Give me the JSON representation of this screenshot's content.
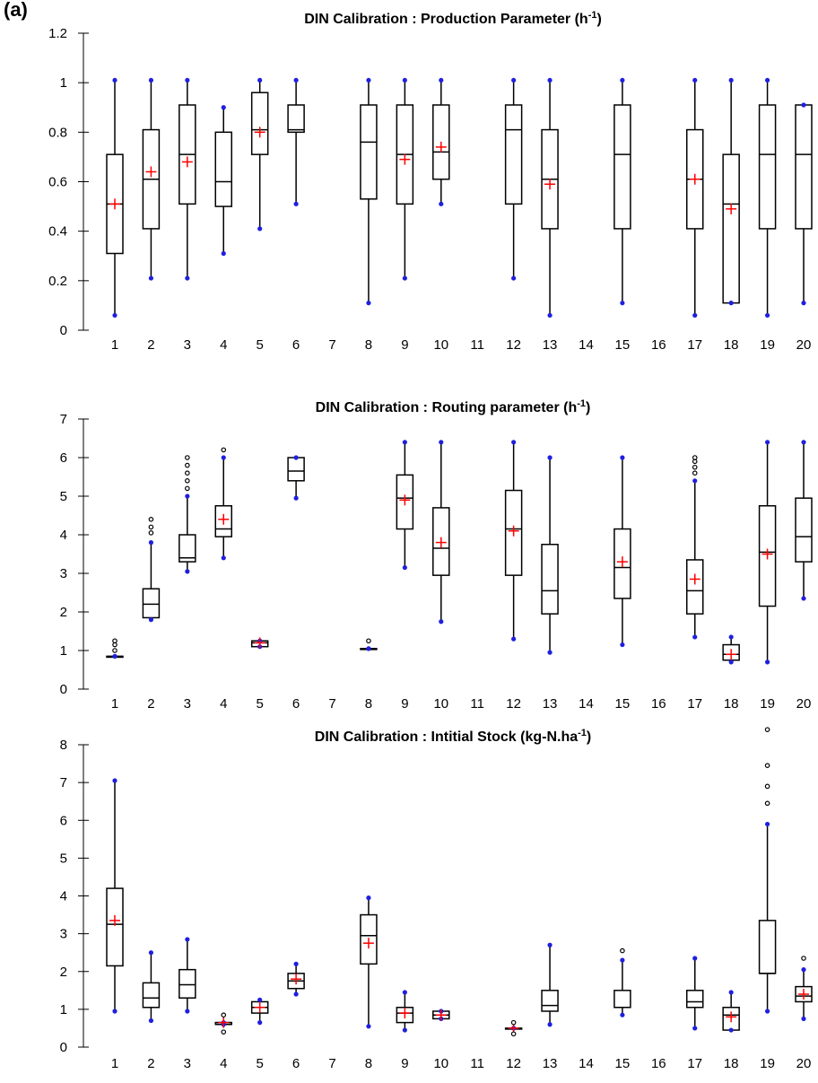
{
  "panel_label": "(a)",
  "chart_data": [
    {
      "type": "box",
      "title": "DIN Calibration : Production Parameter (h",
      "title_sup": "-1",
      "title_end": ")",
      "xlabel": "",
      "ylabel": "",
      "ylim": [
        0,
        1.2
      ],
      "yticks": [
        0,
        0.2,
        0.4,
        0.6,
        0.8,
        1,
        1.2
      ],
      "categories": [
        "1",
        "2",
        "3",
        "4",
        "5",
        "6",
        "7",
        "8",
        "9",
        "10",
        "11",
        "12",
        "13",
        "14",
        "15",
        "16",
        "17",
        "18",
        "19",
        "20"
      ],
      "boxes": [
        {
          "cat": "1",
          "q1": 0.31,
          "median": 0.51,
          "q3": 0.71,
          "mean": 0.51,
          "wlo": 0.06,
          "whi": 1.01,
          "outliers": []
        },
        {
          "cat": "2",
          "q1": 0.41,
          "median": 0.61,
          "q3": 0.81,
          "mean": 0.64,
          "wlo": 0.21,
          "whi": 1.01,
          "outliers": []
        },
        {
          "cat": "3",
          "q1": 0.51,
          "median": 0.71,
          "q3": 0.91,
          "mean": 0.68,
          "wlo": 0.21,
          "whi": 1.01,
          "outliers": []
        },
        {
          "cat": "4",
          "q1": 0.5,
          "median": 0.6,
          "q3": 0.8,
          "mean": null,
          "wlo": 0.31,
          "whi": 0.9,
          "outliers": []
        },
        {
          "cat": "5",
          "q1": 0.71,
          "median": 0.81,
          "q3": 0.96,
          "mean": 0.8,
          "wlo": 0.41,
          "whi": 1.01,
          "outliers": []
        },
        {
          "cat": "6",
          "q1": 0.8,
          "median": 0.81,
          "q3": 0.91,
          "mean": null,
          "wlo": 0.51,
          "whi": 1.01,
          "outliers": []
        },
        {
          "cat": "8",
          "q1": 0.53,
          "median": 0.76,
          "q3": 0.91,
          "mean": null,
          "wlo": 0.11,
          "whi": 1.01,
          "outliers": []
        },
        {
          "cat": "9",
          "q1": 0.51,
          "median": 0.71,
          "q3": 0.91,
          "mean": 0.69,
          "wlo": 0.21,
          "whi": 1.01,
          "outliers": []
        },
        {
          "cat": "10",
          "q1": 0.61,
          "median": 0.72,
          "q3": 0.91,
          "mean": 0.74,
          "wlo": 0.51,
          "whi": 1.01,
          "outliers": []
        },
        {
          "cat": "12",
          "q1": 0.51,
          "median": 0.81,
          "q3": 0.91,
          "mean": null,
          "wlo": 0.21,
          "whi": 1.01,
          "outliers": []
        },
        {
          "cat": "13",
          "q1": 0.41,
          "median": 0.61,
          "q3": 0.81,
          "mean": 0.59,
          "wlo": 0.06,
          "whi": 1.01,
          "outliers": []
        },
        {
          "cat": "15",
          "q1": 0.41,
          "median": 0.71,
          "q3": 0.91,
          "mean": null,
          "wlo": 0.11,
          "whi": 1.01,
          "outliers": []
        },
        {
          "cat": "17",
          "q1": 0.41,
          "median": 0.61,
          "q3": 0.81,
          "mean": 0.61,
          "wlo": 0.06,
          "whi": 1.01,
          "outliers": []
        },
        {
          "cat": "18",
          "q1": 0.11,
          "median": 0.51,
          "q3": 0.71,
          "mean": 0.49,
          "wlo": 0.11,
          "whi": 1.01,
          "outliers": []
        },
        {
          "cat": "19",
          "q1": 0.41,
          "median": 0.71,
          "q3": 0.91,
          "mean": null,
          "wlo": 0.06,
          "whi": 1.01,
          "outliers": []
        },
        {
          "cat": "20",
          "q1": 0.41,
          "median": 0.71,
          "q3": 0.91,
          "mean": null,
          "wlo": 0.11,
          "whi": 0.91,
          "outliers": []
        }
      ]
    },
    {
      "type": "box",
      "title": "DIN Calibration : Routing parameter (h",
      "title_sup": "-1",
      "title_end": ")",
      "xlabel": "",
      "ylabel": "",
      "ylim": [
        0,
        7
      ],
      "yticks": [
        0,
        1,
        2,
        3,
        4,
        5,
        6,
        7
      ],
      "categories": [
        "1",
        "2",
        "3",
        "4",
        "5",
        "6",
        "7",
        "8",
        "9",
        "10",
        "11",
        "12",
        "13",
        "14",
        "15",
        "16",
        "17",
        "18",
        "19",
        "20"
      ],
      "boxes": [
        {
          "cat": "1",
          "q1": 0.85,
          "median": 0.85,
          "q3": 0.85,
          "mean": null,
          "wlo": 0.85,
          "whi": 0.85,
          "outliers": [
            1.0,
            1.15,
            1.25
          ]
        },
        {
          "cat": "2",
          "q1": 1.85,
          "median": 2.2,
          "q3": 2.6,
          "mean": null,
          "wlo": 1.8,
          "whi": 3.8,
          "outliers": [
            4.05,
            4.2,
            4.4
          ]
        },
        {
          "cat": "3",
          "q1": 3.3,
          "median": 3.4,
          "q3": 4.0,
          "mean": null,
          "wlo": 3.05,
          "whi": 5.0,
          "outliers": [
            5.2,
            5.4,
            5.6,
            5.8,
            6.0
          ]
        },
        {
          "cat": "4",
          "q1": 3.95,
          "median": 4.15,
          "q3": 4.75,
          "mean": 4.4,
          "wlo": 3.4,
          "whi": 6.0,
          "outliers": [
            6.2
          ]
        },
        {
          "cat": "5",
          "q1": 1.1,
          "median": 1.2,
          "q3": 1.25,
          "mean": 1.2,
          "wlo": 1.1,
          "whi": 1.25,
          "outliers": []
        },
        {
          "cat": "6",
          "q1": 5.4,
          "median": 5.65,
          "q3": 6.0,
          "mean": null,
          "wlo": 4.95,
          "whi": 6.0,
          "outliers": []
        },
        {
          "cat": "8",
          "q1": 1.05,
          "median": 1.05,
          "q3": 1.05,
          "mean": null,
          "wlo": 1.05,
          "whi": 1.05,
          "outliers": [
            1.25
          ]
        },
        {
          "cat": "9",
          "q1": 4.15,
          "median": 4.95,
          "q3": 5.55,
          "mean": 4.9,
          "wlo": 3.15,
          "whi": 6.4,
          "outliers": []
        },
        {
          "cat": "10",
          "q1": 2.95,
          "median": 3.65,
          "q3": 4.7,
          "mean": 3.8,
          "wlo": 1.75,
          "whi": 6.4,
          "outliers": []
        },
        {
          "cat": "12",
          "q1": 2.95,
          "median": 4.15,
          "q3": 5.15,
          "mean": 4.1,
          "wlo": 1.3,
          "whi": 6.4,
          "outliers": []
        },
        {
          "cat": "13",
          "q1": 1.95,
          "median": 2.55,
          "q3": 3.75,
          "mean": null,
          "wlo": 0.95,
          "whi": 6.0,
          "outliers": []
        },
        {
          "cat": "15",
          "q1": 2.35,
          "median": 3.15,
          "q3": 4.15,
          "mean": 3.3,
          "wlo": 1.15,
          "whi": 6.0,
          "outliers": []
        },
        {
          "cat": "17",
          "q1": 1.95,
          "median": 2.55,
          "q3": 3.35,
          "mean": 2.85,
          "wlo": 1.35,
          "whi": 5.4,
          "outliers": [
            5.6,
            5.75,
            5.9,
            6.0
          ]
        },
        {
          "cat": "18",
          "q1": 0.75,
          "median": 0.9,
          "q3": 1.15,
          "mean": 0.9,
          "wlo": 0.7,
          "whi": 1.35,
          "outliers": []
        },
        {
          "cat": "19",
          "q1": 2.15,
          "median": 3.55,
          "q3": 4.75,
          "mean": 3.5,
          "wlo": 0.7,
          "whi": 6.4,
          "outliers": []
        },
        {
          "cat": "20",
          "q1": 3.3,
          "median": 3.95,
          "q3": 4.95,
          "mean": null,
          "wlo": 2.35,
          "whi": 6.4,
          "outliers": []
        }
      ]
    },
    {
      "type": "box",
      "title": "DIN Calibration : Intitial Stock (kg-N.ha",
      "title_sup": "-1",
      "title_end": ")",
      "xlabel": "",
      "ylabel": "",
      "ylim": [
        0,
        8
      ],
      "yticks": [
        0,
        1,
        2,
        3,
        4,
        5,
        6,
        7,
        8
      ],
      "categories": [
        "1",
        "2",
        "3",
        "4",
        "5",
        "6",
        "7",
        "8",
        "9",
        "10",
        "11",
        "12",
        "13",
        "14",
        "15",
        "16",
        "17",
        "18",
        "19",
        "20"
      ],
      "boxes": [
        {
          "cat": "1",
          "q1": 2.15,
          "median": 3.25,
          "q3": 4.2,
          "mean": 3.35,
          "wlo": 0.95,
          "whi": 7.05,
          "outliers": []
        },
        {
          "cat": "2",
          "q1": 1.05,
          "median": 1.3,
          "q3": 1.7,
          "mean": null,
          "wlo": 0.7,
          "whi": 2.5,
          "outliers": []
        },
        {
          "cat": "3",
          "q1": 1.3,
          "median": 1.65,
          "q3": 2.05,
          "mean": null,
          "wlo": 0.95,
          "whi": 2.85,
          "outliers": []
        },
        {
          "cat": "4",
          "q1": 0.6,
          "median": 0.65,
          "q3": 0.65,
          "mean": 0.65,
          "wlo": 0.6,
          "whi": 0.65,
          "outliers": [
            0.4,
            0.85
          ]
        },
        {
          "cat": "5",
          "q1": 0.9,
          "median": 1.05,
          "q3": 1.2,
          "mean": 1.05,
          "wlo": 0.65,
          "whi": 1.25,
          "outliers": []
        },
        {
          "cat": "6",
          "q1": 1.55,
          "median": 1.75,
          "q3": 1.95,
          "mean": 1.8,
          "wlo": 1.4,
          "whi": 2.2,
          "outliers": []
        },
        {
          "cat": "8",
          "q1": 2.2,
          "median": 2.95,
          "q3": 3.5,
          "mean": 2.75,
          "wlo": 0.55,
          "whi": 3.95,
          "outliers": []
        },
        {
          "cat": "9",
          "q1": 0.65,
          "median": 0.9,
          "q3": 1.05,
          "mean": 0.9,
          "wlo": 0.45,
          "whi": 1.45,
          "outliers": []
        },
        {
          "cat": "10",
          "q1": 0.75,
          "median": 0.85,
          "q3": 0.95,
          "mean": 0.85,
          "wlo": 0.75,
          "whi": 0.95,
          "outliers": []
        },
        {
          "cat": "12",
          "q1": 0.5,
          "median": 0.5,
          "q3": 0.5,
          "mean": 0.5,
          "wlo": 0.5,
          "whi": 0.5,
          "outliers": [
            0.35,
            0.65
          ]
        },
        {
          "cat": "13",
          "q1": 0.95,
          "median": 1.1,
          "q3": 1.5,
          "mean": null,
          "wlo": 0.6,
          "whi": 2.7,
          "outliers": []
        },
        {
          "cat": "15",
          "q1": 1.05,
          "median": 1.05,
          "q3": 1.5,
          "mean": null,
          "wlo": 0.85,
          "whi": 2.3,
          "outliers": [
            2.55
          ]
        },
        {
          "cat": "17",
          "q1": 1.05,
          "median": 1.2,
          "q3": 1.5,
          "mean": null,
          "wlo": 0.5,
          "whi": 2.35,
          "outliers": []
        },
        {
          "cat": "18",
          "q1": 0.45,
          "median": 0.85,
          "q3": 1.05,
          "mean": 0.8,
          "wlo": 0.45,
          "whi": 1.45,
          "outliers": []
        },
        {
          "cat": "19",
          "q1": 1.95,
          "median": 1.95,
          "q3": 3.35,
          "mean": null,
          "wlo": 0.95,
          "whi": 5.9,
          "outliers": [
            6.45,
            6.9,
            7.45,
            8.4
          ]
        },
        {
          "cat": "20",
          "q1": 1.2,
          "median": 1.35,
          "q3": 1.6,
          "mean": 1.4,
          "wlo": 0.75,
          "whi": 2.05,
          "outliers": [
            2.35
          ]
        }
      ]
    }
  ],
  "colors": {
    "box": "#000000",
    "whisker_end": "#1f1fe0",
    "mean": "#ff0000",
    "outlier": "#000000",
    "background": "#ffffff"
  }
}
